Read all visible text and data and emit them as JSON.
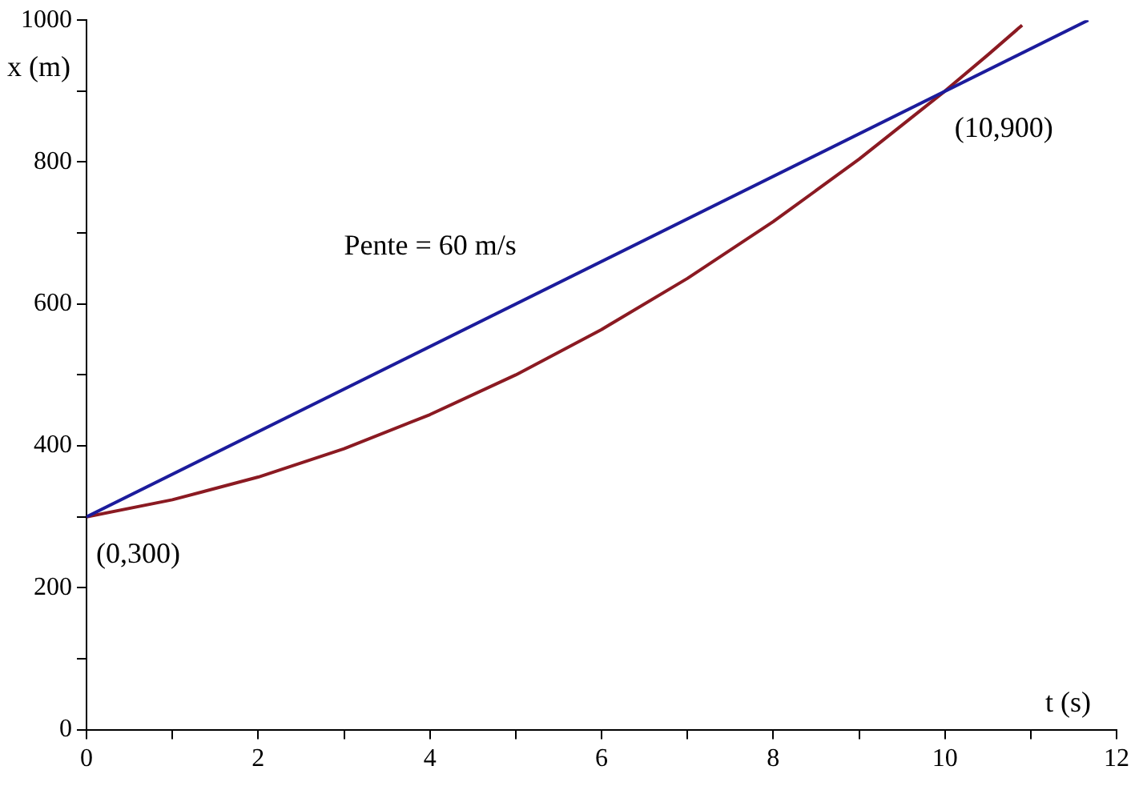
{
  "chart_data": {
    "type": "line",
    "xlabel": "t (s)",
    "ylabel": "x (m)",
    "xlim": [
      0,
      12
    ],
    "ylim": [
      0,
      1000
    ],
    "xticks": [
      0,
      {
        "value": 1,
        "label": null
      },
      2,
      {
        "value": 3,
        "label": null
      },
      4,
      {
        "value": 5,
        "label": null
      },
      6,
      {
        "value": 7,
        "label": null
      },
      8,
      {
        "value": 9,
        "label": null
      },
      10,
      {
        "value": 11,
        "label": null
      },
      12
    ],
    "yticks": [
      0,
      {
        "value": 100,
        "label": null
      },
      200,
      {
        "value": 300,
        "label": null
      },
      400,
      {
        "value": 500,
        "label": null
      },
      600,
      {
        "value": 700,
        "label": null
      },
      800,
      {
        "value": 900,
        "label": null
      },
      1000
    ],
    "grid": false,
    "legend": false,
    "marker": "none",
    "line_style": "solid",
    "series": [
      {
        "color": "#1c1c9c",
        "x": [
          0,
          11.67
        ],
        "values": [
          300,
          1000
        ]
      },
      {
        "color": "#8b1a22",
        "x": [
          0,
          1,
          2,
          3,
          4,
          5,
          6,
          7,
          8,
          9,
          10,
          10.5,
          10.9
        ],
        "values": [
          300,
          324,
          356,
          396,
          444,
          500,
          564,
          636,
          716,
          804,
          900,
          951,
          993
        ]
      }
    ],
    "annotations": [
      "Pente = 60 m/s",
      {
        "text": "(0,300)",
        "x": 0,
        "y": 300
      },
      {
        "text": "(10,900)",
        "x": 10,
        "y": 900
      }
    ]
  }
}
